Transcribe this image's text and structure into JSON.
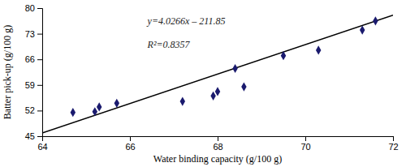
{
  "chart_data": {
    "type": "scatter",
    "xlabel": "Water binding capacity (g/100 g)",
    "ylabel": "Batter pick-up (g/100 g)",
    "annotations": [
      "y=4.0266x – 211.85",
      "R²=0.8357"
    ],
    "series": [
      {
        "type": "scatter",
        "marker": "diamond",
        "color": "#1a1a6e",
        "x": [
          64.7,
          65.2,
          65.3,
          65.7,
          67.2,
          67.9,
          68.0,
          68.4,
          68.6,
          69.5,
          70.3,
          71.3,
          71.6
        ],
        "values": [
          51.5,
          51.7,
          53.0,
          54.0,
          54.5,
          56.0,
          57.2,
          63.5,
          58.5,
          67.0,
          68.5,
          74.0,
          76.5
        ]
      },
      {
        "type": "line",
        "color": "black",
        "x": [
          64.0,
          72.0
        ],
        "values": [
          45.8524,
          78.0652
        ]
      }
    ],
    "xlim": [
      64,
      72
    ],
    "ylim": [
      45,
      80
    ],
    "xticks": [
      64,
      66,
      68,
      70,
      72
    ],
    "yticks": [
      45,
      52,
      59,
      66,
      73,
      80
    ]
  }
}
